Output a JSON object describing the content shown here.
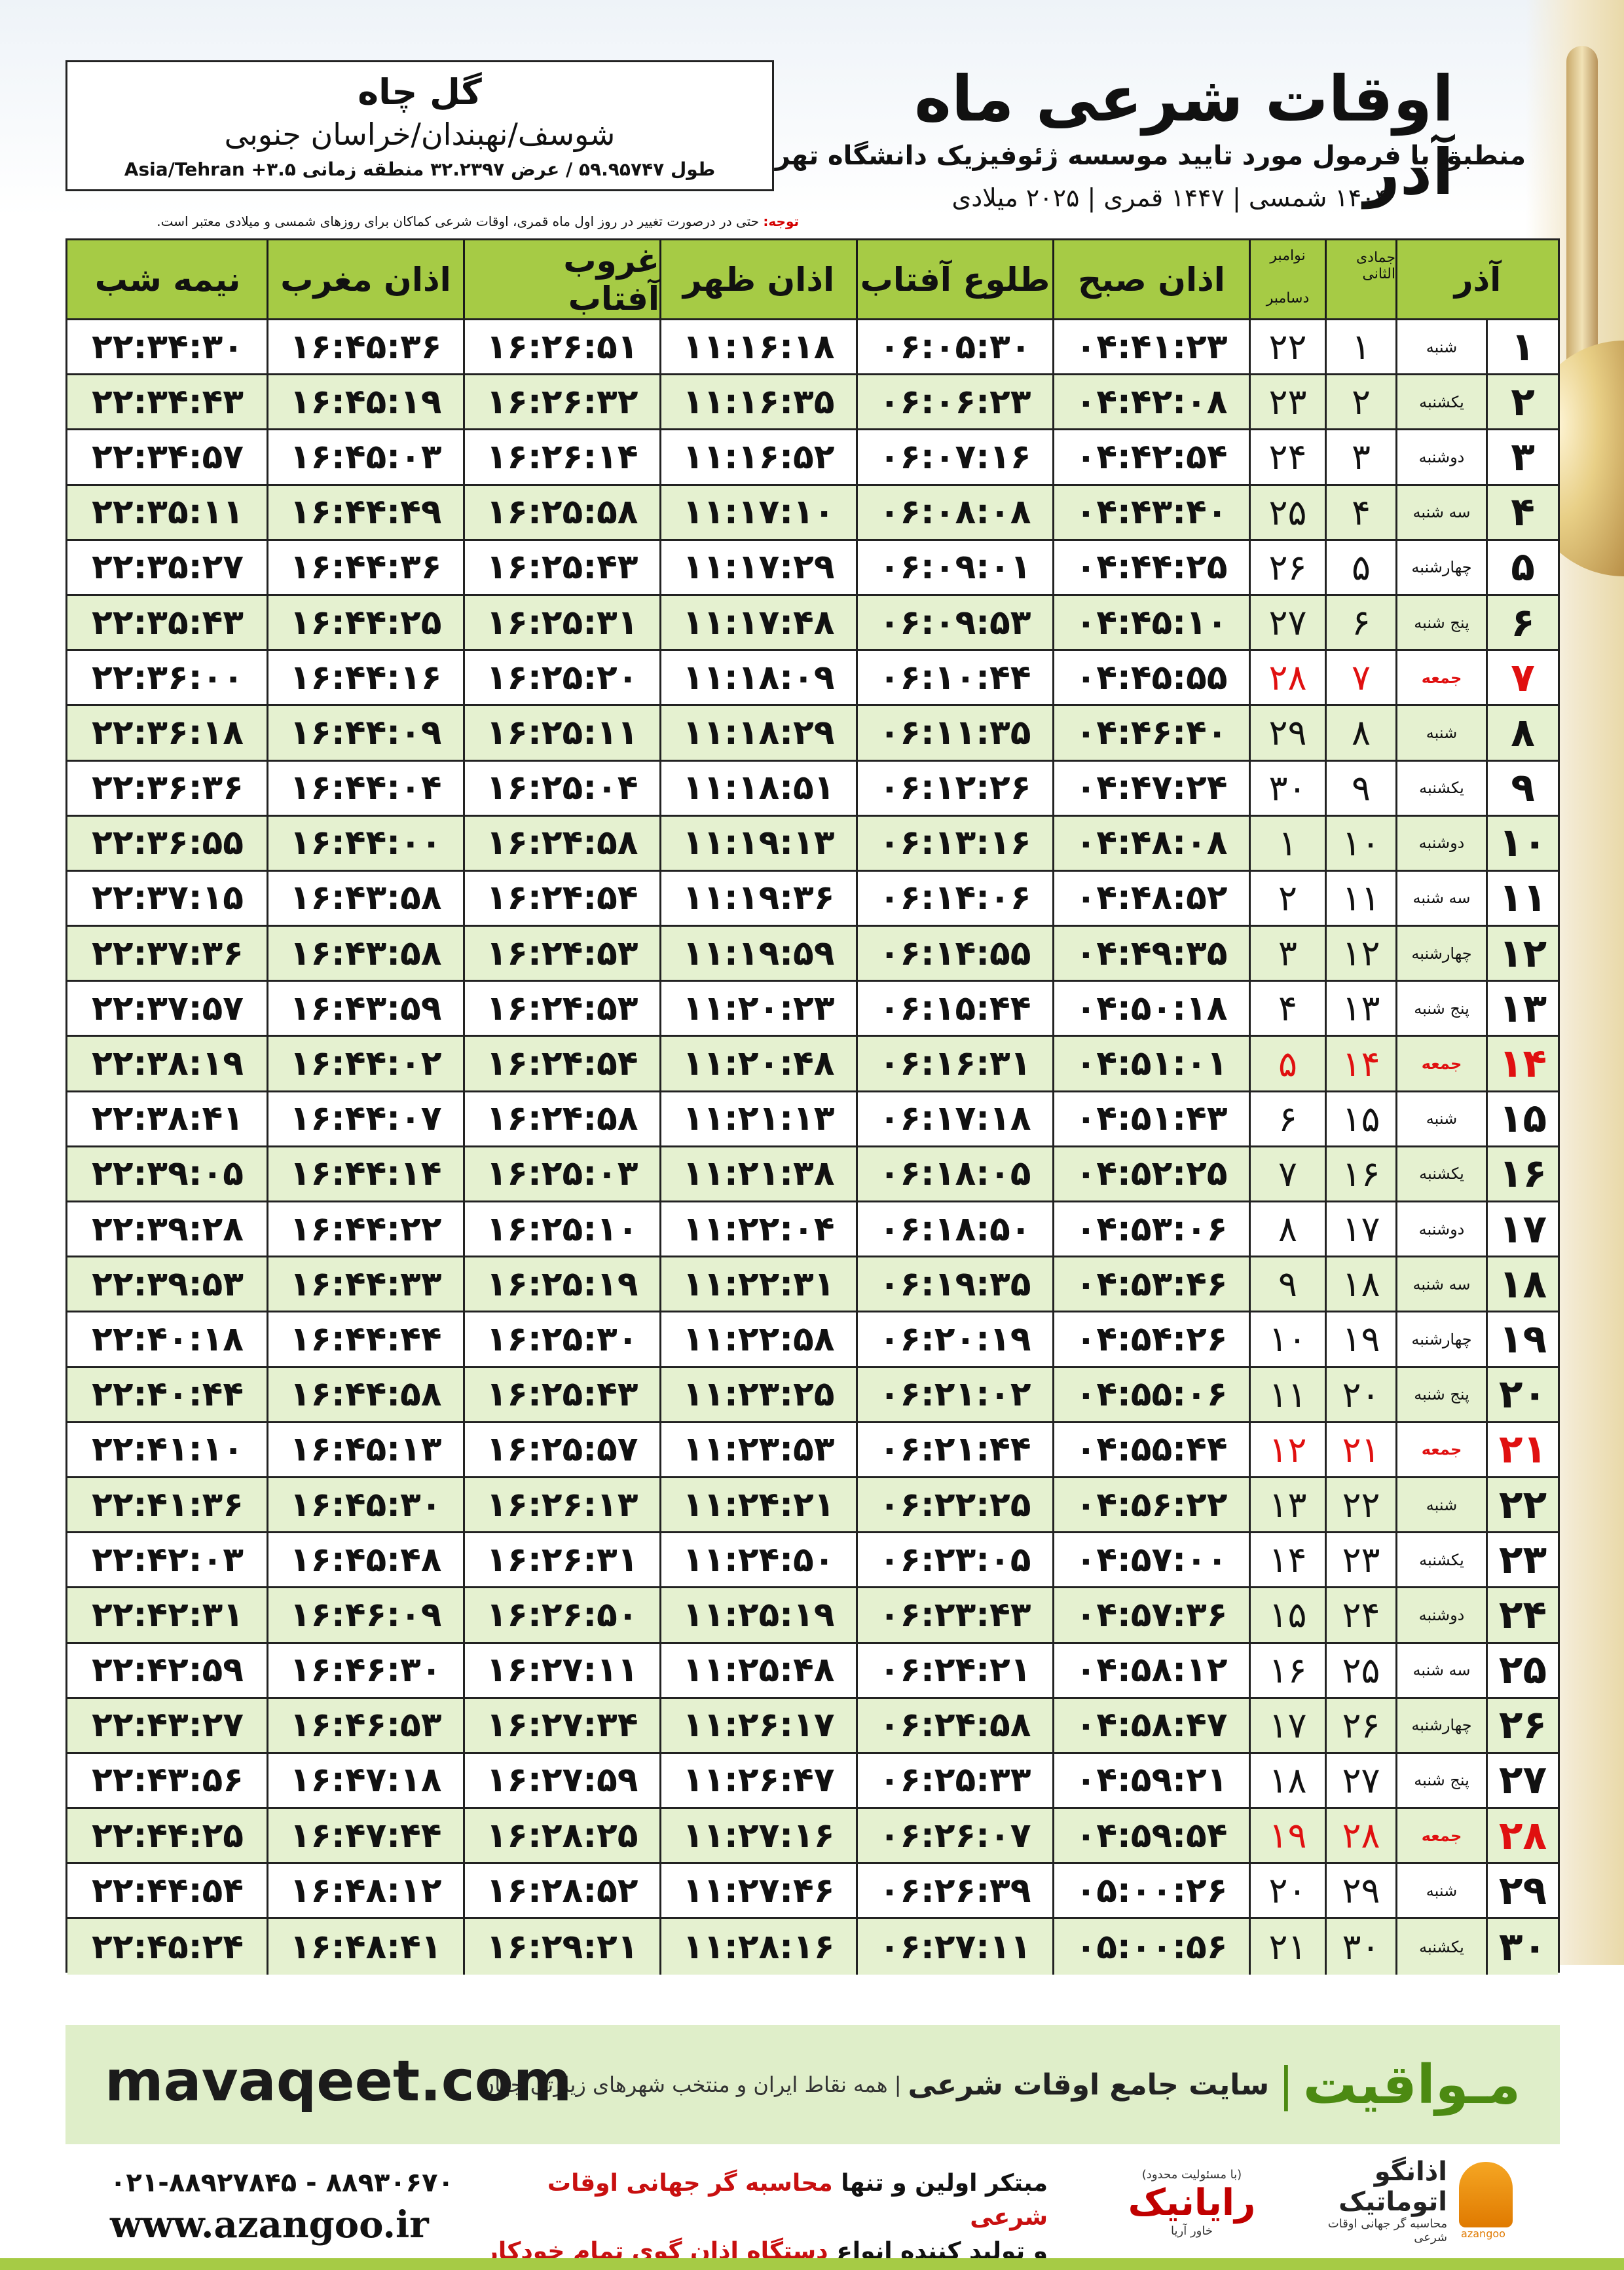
{
  "header": {
    "title": "اوقات شرعی ماه آذر",
    "subtitle": "منطبق با فرمول مورد تایید موسسه ژئوفیزیک دانشگاه تهران",
    "dates": "۱۴۰۴ شمسی | ۱۴۴۷ قمری | ۲۰۲۵ میلادی"
  },
  "location": {
    "city": "گل چاه",
    "region": "شوسف/نهبندان/خراسان جنوبی",
    "coords": "طول ۵۹.۹۵۷۴۷ / عرض ۳۲.۲۳۹۷ منطقه زمانی ۳.۵+ Asia/Tehran"
  },
  "note": {
    "label": "توجه:",
    "text": " حتی در درصورت تغییر در روز اول ماه قمری، اوقات شرعی کماکان برای روزهای شمسی و میلادی معتبر است."
  },
  "columns": {
    "month": "آذر",
    "hijri": "جمادی الثانی",
    "greg_top": "نوامبر",
    "greg_bottom": "دسامبر",
    "fajr": "اذان صبح",
    "sunrise": "طلوع آفتاب",
    "dhuhr": "اذان ظهر",
    "sunset": "غروب آفتاب",
    "maghrib": "اذان مغرب",
    "midnight": "نیمه شب"
  },
  "rows": [
    {
      "d": "۱",
      "w": "شنبه",
      "h": "۱",
      "g": "۲۲",
      "fajr": "۰۴:۴۱:۲۳",
      "sunrise": "۰۶:۰۵:۳۰",
      "dhuhr": "۱۱:۱۶:۱۸",
      "sunset": "۱۶:۲۶:۵۱",
      "maghrib": "۱۶:۴۵:۳۶",
      "midnight": "۲۲:۳۴:۳۰"
    },
    {
      "d": "۲",
      "w": "یکشنبه",
      "h": "۲",
      "g": "۲۳",
      "fajr": "۰۴:۴۲:۰۸",
      "sunrise": "۰۶:۰۶:۲۳",
      "dhuhr": "۱۱:۱۶:۳۵",
      "sunset": "۱۶:۲۶:۳۲",
      "maghrib": "۱۶:۴۵:۱۹",
      "midnight": "۲۲:۳۴:۴۳"
    },
    {
      "d": "۳",
      "w": "دوشنبه",
      "h": "۳",
      "g": "۲۴",
      "fajr": "۰۴:۴۲:۵۴",
      "sunrise": "۰۶:۰۷:۱۶",
      "dhuhr": "۱۱:۱۶:۵۲",
      "sunset": "۱۶:۲۶:۱۴",
      "maghrib": "۱۶:۴۵:۰۳",
      "midnight": "۲۲:۳۴:۵۷"
    },
    {
      "d": "۴",
      "w": "سه شنبه",
      "h": "۴",
      "g": "۲۵",
      "fajr": "۰۴:۴۳:۴۰",
      "sunrise": "۰۶:۰۸:۰۸",
      "dhuhr": "۱۱:۱۷:۱۰",
      "sunset": "۱۶:۲۵:۵۸",
      "maghrib": "۱۶:۴۴:۴۹",
      "midnight": "۲۲:۳۵:۱۱"
    },
    {
      "d": "۵",
      "w": "چهارشنبه",
      "h": "۵",
      "g": "۲۶",
      "fajr": "۰۴:۴۴:۲۵",
      "sunrise": "۰۶:۰۹:۰۱",
      "dhuhr": "۱۱:۱۷:۲۹",
      "sunset": "۱۶:۲۵:۴۳",
      "maghrib": "۱۶:۴۴:۳۶",
      "midnight": "۲۲:۳۵:۲۷"
    },
    {
      "d": "۶",
      "w": "پنج شنبه",
      "h": "۶",
      "g": "۲۷",
      "fajr": "۰۴:۴۵:۱۰",
      "sunrise": "۰۶:۰۹:۵۳",
      "dhuhr": "۱۱:۱۷:۴۸",
      "sunset": "۱۶:۲۵:۳۱",
      "maghrib": "۱۶:۴۴:۲۵",
      "midnight": "۲۲:۳۵:۴۳"
    },
    {
      "d": "۷",
      "w": "جمعه",
      "h": "۷",
      "g": "۲۸",
      "fajr": "۰۴:۴۵:۵۵",
      "sunrise": "۰۶:۱۰:۴۴",
      "dhuhr": "۱۱:۱۸:۰۹",
      "sunset": "۱۶:۲۵:۲۰",
      "maghrib": "۱۶:۴۴:۱۶",
      "midnight": "۲۲:۳۶:۰۰",
      "friday": true
    },
    {
      "d": "۸",
      "w": "شنبه",
      "h": "۸",
      "g": "۲۹",
      "fajr": "۰۴:۴۶:۴۰",
      "sunrise": "۰۶:۱۱:۳۵",
      "dhuhr": "۱۱:۱۸:۲۹",
      "sunset": "۱۶:۲۵:۱۱",
      "maghrib": "۱۶:۴۴:۰۹",
      "midnight": "۲۲:۳۶:۱۸"
    },
    {
      "d": "۹",
      "w": "یکشنبه",
      "h": "۹",
      "g": "۳۰",
      "fajr": "۰۴:۴۷:۲۴",
      "sunrise": "۰۶:۱۲:۲۶",
      "dhuhr": "۱۱:۱۸:۵۱",
      "sunset": "۱۶:۲۵:۰۴",
      "maghrib": "۱۶:۴۴:۰۴",
      "midnight": "۲۲:۳۶:۳۶"
    },
    {
      "d": "۱۰",
      "w": "دوشنبه",
      "h": "۱۰",
      "g": "۱",
      "fajr": "۰۴:۴۸:۰۸",
      "sunrise": "۰۶:۱۳:۱۶",
      "dhuhr": "۱۱:۱۹:۱۳",
      "sunset": "۱۶:۲۴:۵۸",
      "maghrib": "۱۶:۴۴:۰۰",
      "midnight": "۲۲:۳۶:۵۵"
    },
    {
      "d": "۱۱",
      "w": "سه شنبه",
      "h": "۱۱",
      "g": "۲",
      "fajr": "۰۴:۴۸:۵۲",
      "sunrise": "۰۶:۱۴:۰۶",
      "dhuhr": "۱۱:۱۹:۳۶",
      "sunset": "۱۶:۲۴:۵۴",
      "maghrib": "۱۶:۴۳:۵۸",
      "midnight": "۲۲:۳۷:۱۵"
    },
    {
      "d": "۱۲",
      "w": "چهارشنبه",
      "h": "۱۲",
      "g": "۳",
      "fajr": "۰۴:۴۹:۳۵",
      "sunrise": "۰۶:۱۴:۵۵",
      "dhuhr": "۱۱:۱۹:۵۹",
      "sunset": "۱۶:۲۴:۵۳",
      "maghrib": "۱۶:۴۳:۵۸",
      "midnight": "۲۲:۳۷:۳۶"
    },
    {
      "d": "۱۳",
      "w": "پنج شنبه",
      "h": "۱۳",
      "g": "۴",
      "fajr": "۰۴:۵۰:۱۸",
      "sunrise": "۰۶:۱۵:۴۴",
      "dhuhr": "۱۱:۲۰:۲۳",
      "sunset": "۱۶:۲۴:۵۳",
      "maghrib": "۱۶:۴۳:۵۹",
      "midnight": "۲۲:۳۷:۵۷"
    },
    {
      "d": "۱۴",
      "w": "جمعه",
      "h": "۱۴",
      "g": "۵",
      "fajr": "۰۴:۵۱:۰۱",
      "sunrise": "۰۶:۱۶:۳۱",
      "dhuhr": "۱۱:۲۰:۴۸",
      "sunset": "۱۶:۲۴:۵۴",
      "maghrib": "۱۶:۴۴:۰۲",
      "midnight": "۲۲:۳۸:۱۹",
      "friday": true
    },
    {
      "d": "۱۵",
      "w": "شنبه",
      "h": "۱۵",
      "g": "۶",
      "fajr": "۰۴:۵۱:۴۳",
      "sunrise": "۰۶:۱۷:۱۸",
      "dhuhr": "۱۱:۲۱:۱۳",
      "sunset": "۱۶:۲۴:۵۸",
      "maghrib": "۱۶:۴۴:۰۷",
      "midnight": "۲۲:۳۸:۴۱"
    },
    {
      "d": "۱۶",
      "w": "یکشنبه",
      "h": "۱۶",
      "g": "۷",
      "fajr": "۰۴:۵۲:۲۵",
      "sunrise": "۰۶:۱۸:۰۵",
      "dhuhr": "۱۱:۲۱:۳۸",
      "sunset": "۱۶:۲۵:۰۳",
      "maghrib": "۱۶:۴۴:۱۴",
      "midnight": "۲۲:۳۹:۰۵"
    },
    {
      "d": "۱۷",
      "w": "دوشنبه",
      "h": "۱۷",
      "g": "۸",
      "fajr": "۰۴:۵۳:۰۶",
      "sunrise": "۰۶:۱۸:۵۰",
      "dhuhr": "۱۱:۲۲:۰۴",
      "sunset": "۱۶:۲۵:۱۰",
      "maghrib": "۱۶:۴۴:۲۲",
      "midnight": "۲۲:۳۹:۲۸"
    },
    {
      "d": "۱۸",
      "w": "سه شنبه",
      "h": "۱۸",
      "g": "۹",
      "fajr": "۰۴:۵۳:۴۶",
      "sunrise": "۰۶:۱۹:۳۵",
      "dhuhr": "۱۱:۲۲:۳۱",
      "sunset": "۱۶:۲۵:۱۹",
      "maghrib": "۱۶:۴۴:۳۳",
      "midnight": "۲۲:۳۹:۵۳"
    },
    {
      "d": "۱۹",
      "w": "چهارشنبه",
      "h": "۱۹",
      "g": "۱۰",
      "fajr": "۰۴:۵۴:۲۶",
      "sunrise": "۰۶:۲۰:۱۹",
      "dhuhr": "۱۱:۲۲:۵۸",
      "sunset": "۱۶:۲۵:۳۰",
      "maghrib": "۱۶:۴۴:۴۴",
      "midnight": "۲۲:۴۰:۱۸"
    },
    {
      "d": "۲۰",
      "w": "پنج شنبه",
      "h": "۲۰",
      "g": "۱۱",
      "fajr": "۰۴:۵۵:۰۶",
      "sunrise": "۰۶:۲۱:۰۲",
      "dhuhr": "۱۱:۲۳:۲۵",
      "sunset": "۱۶:۲۵:۴۳",
      "maghrib": "۱۶:۴۴:۵۸",
      "midnight": "۲۲:۴۰:۴۴"
    },
    {
      "d": "۲۱",
      "w": "جمعه",
      "h": "۲۱",
      "g": "۱۲",
      "fajr": "۰۴:۵۵:۴۴",
      "sunrise": "۰۶:۲۱:۴۴",
      "dhuhr": "۱۱:۲۳:۵۳",
      "sunset": "۱۶:۲۵:۵۷",
      "maghrib": "۱۶:۴۵:۱۳",
      "midnight": "۲۲:۴۱:۱۰",
      "friday": true
    },
    {
      "d": "۲۲",
      "w": "شنبه",
      "h": "۲۲",
      "g": "۱۳",
      "fajr": "۰۴:۵۶:۲۲",
      "sunrise": "۰۶:۲۲:۲۵",
      "dhuhr": "۱۱:۲۴:۲۱",
      "sunset": "۱۶:۲۶:۱۳",
      "maghrib": "۱۶:۴۵:۳۰",
      "midnight": "۲۲:۴۱:۳۶"
    },
    {
      "d": "۲۳",
      "w": "یکشنبه",
      "h": "۲۳",
      "g": "۱۴",
      "fajr": "۰۴:۵۷:۰۰",
      "sunrise": "۰۶:۲۳:۰۵",
      "dhuhr": "۱۱:۲۴:۵۰",
      "sunset": "۱۶:۲۶:۳۱",
      "maghrib": "۱۶:۴۵:۴۸",
      "midnight": "۲۲:۴۲:۰۳"
    },
    {
      "d": "۲۴",
      "w": "دوشنبه",
      "h": "۲۴",
      "g": "۱۵",
      "fajr": "۰۴:۵۷:۳۶",
      "sunrise": "۰۶:۲۳:۴۳",
      "dhuhr": "۱۱:۲۵:۱۹",
      "sunset": "۱۶:۲۶:۵۰",
      "maghrib": "۱۶:۴۶:۰۹",
      "midnight": "۲۲:۴۲:۳۱"
    },
    {
      "d": "۲۵",
      "w": "سه شنبه",
      "h": "۲۵",
      "g": "۱۶",
      "fajr": "۰۴:۵۸:۱۲",
      "sunrise": "۰۶:۲۴:۲۱",
      "dhuhr": "۱۱:۲۵:۴۸",
      "sunset": "۱۶:۲۷:۱۱",
      "maghrib": "۱۶:۴۶:۳۰",
      "midnight": "۲۲:۴۲:۵۹"
    },
    {
      "d": "۲۶",
      "w": "چهارشنبه",
      "h": "۲۶",
      "g": "۱۷",
      "fajr": "۰۴:۵۸:۴۷",
      "sunrise": "۰۶:۲۴:۵۸",
      "dhuhr": "۱۱:۲۶:۱۷",
      "sunset": "۱۶:۲۷:۳۴",
      "maghrib": "۱۶:۴۶:۵۳",
      "midnight": "۲۲:۴۳:۲۷"
    },
    {
      "d": "۲۷",
      "w": "پنج شنبه",
      "h": "۲۷",
      "g": "۱۸",
      "fajr": "۰۴:۵۹:۲۱",
      "sunrise": "۰۶:۲۵:۳۳",
      "dhuhr": "۱۱:۲۶:۴۷",
      "sunset": "۱۶:۲۷:۵۹",
      "maghrib": "۱۶:۴۷:۱۸",
      "midnight": "۲۲:۴۳:۵۶"
    },
    {
      "d": "۲۸",
      "w": "جمعه",
      "h": "۲۸",
      "g": "۱۹",
      "fajr": "۰۴:۵۹:۵۴",
      "sunrise": "۰۶:۲۶:۰۷",
      "dhuhr": "۱۱:۲۷:۱۶",
      "sunset": "۱۶:۲۸:۲۵",
      "maghrib": "۱۶:۴۷:۴۴",
      "midnight": "۲۲:۴۴:۲۵",
      "friday": true
    },
    {
      "d": "۲۹",
      "w": "شنبه",
      "h": "۲۹",
      "g": "۲۰",
      "fajr": "۰۵:۰۰:۲۶",
      "sunrise": "۰۶:۲۶:۳۹",
      "dhuhr": "۱۱:۲۷:۴۶",
      "sunset": "۱۶:۲۸:۵۲",
      "maghrib": "۱۶:۴۸:۱۲",
      "midnight": "۲۲:۴۴:۵۴"
    },
    {
      "d": "۳۰",
      "w": "یکشنبه",
      "h": "۳۰",
      "g": "۲۱",
      "fajr": "۰۵:۰۰:۵۶",
      "sunrise": "۰۶:۲۷:۱۱",
      "dhuhr": "۱۱:۲۸:۱۶",
      "sunset": "۱۶:۲۹:۲۱",
      "maghrib": "۱۶:۴۸:۴۱",
      "midnight": "۲۲:۴۵:۲۴"
    }
  ],
  "banner": {
    "brand": "مـواقیت",
    "separator": "|",
    "tagline": "سایت جامع اوقات شرعی",
    "tagline2": "| همه نقاط ایران و منتخب شهرهای زیارتی جهان",
    "site": "mavaqeet.com"
  },
  "footer": {
    "phone": "۰۲۱-۸۸۹۲۷۸۴۵ - ۸۸۹۳۰۶۷۰",
    "web": "www.azangoo.ir",
    "line1_pre": "مبتکر اولین و تنها ",
    "line1_hl": "محاسبه گر جهانی اوقات شرعی",
    "line2_pre": "و تولید کننده انواع ",
    "line2_hl": "دستگاه اذان گوی تمام خودکار ماهواره ای",
    "raya": "رایانیک",
    "raya_sub": "خاور آریا",
    "raya_tag": "(با مسئولیت محدود)",
    "azan_name": "اذانگو اتوماتیک",
    "azan_sub": "محاسبه گر جهانی اوقات شرعی",
    "azan_en": "azangoo"
  },
  "colors": {
    "header_green": "#a6cb45",
    "row_alt": "#e5f1d0",
    "friday_red": "#e01010",
    "brand_green": "#4c8a12"
  }
}
